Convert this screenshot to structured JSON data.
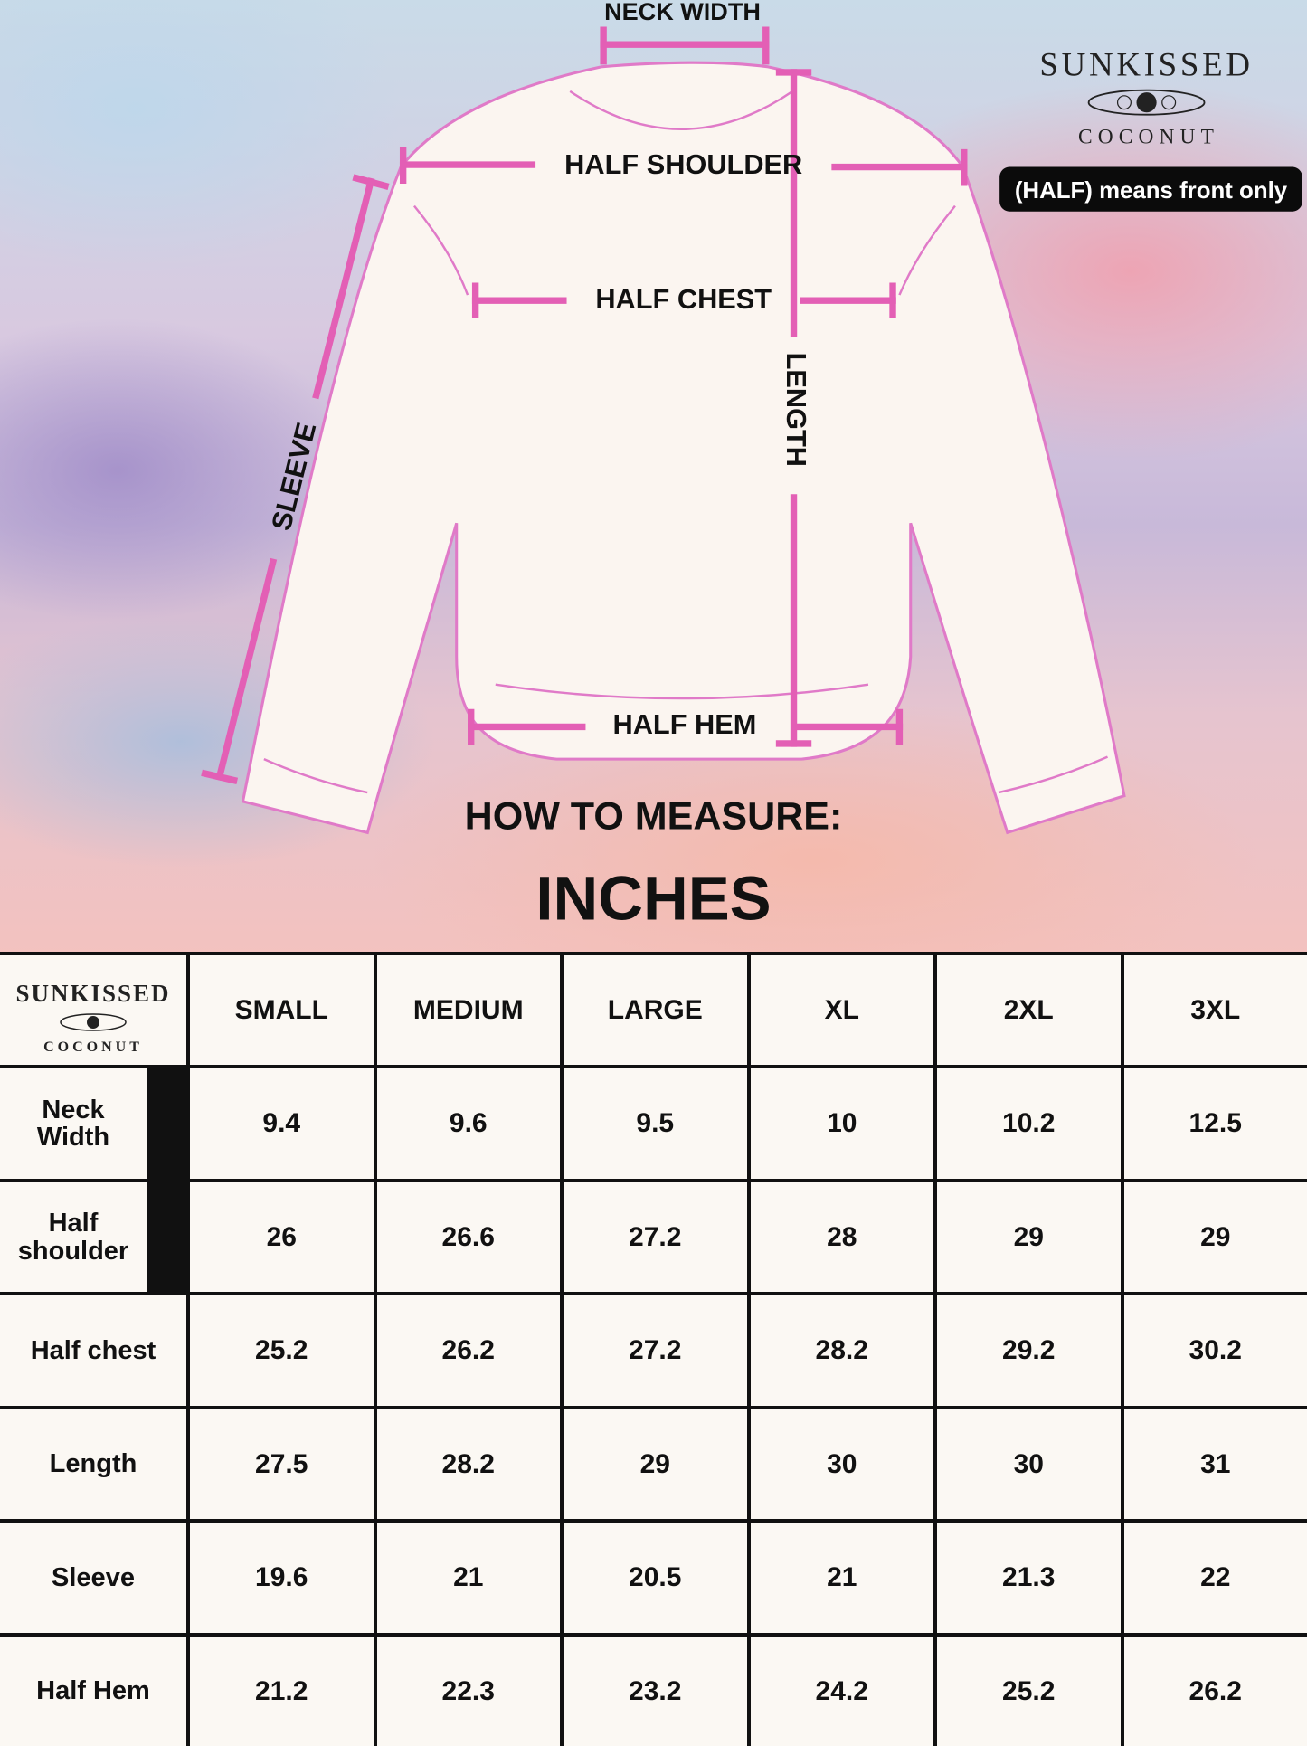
{
  "brand": {
    "line1": "SUNKISSED",
    "line2": "COCONUT",
    "emblem": "hibiscus-surfboard-icon"
  },
  "note_badge": "(HALF) means front only",
  "diagram": {
    "labels": {
      "neck_width": "NECK WIDTH",
      "half_shoulder": "HALF SHOULDER",
      "half_chest": "HALF CHEST",
      "length": "LENGTH",
      "sleeve": "SLEEVE",
      "half_hem": "HALF HEM"
    },
    "heading": "HOW TO MEASURE:",
    "unit": "INCHES",
    "colors": {
      "measure_line": "#e35fb5",
      "outline": "#e07ac8",
      "garment": "#fbf5f0"
    }
  },
  "table": {
    "columns": [
      "SMALL",
      "MEDIUM",
      "LARGE",
      "XL",
      "2XL",
      "3XL"
    ],
    "rows": [
      {
        "label": "Neck Width",
        "values": [
          "9.4",
          "9.6",
          "9.5",
          "10",
          "10.2",
          "12.5"
        ]
      },
      {
        "label": "Half shoulder",
        "values": [
          "26",
          "26.6",
          "27.2",
          "28",
          "29",
          "29"
        ]
      },
      {
        "label": "Half chest",
        "values": [
          "25.2",
          "26.2",
          "27.2",
          "28.2",
          "29.2",
          "30.2"
        ]
      },
      {
        "label": "Length",
        "values": [
          "27.5",
          "28.2",
          "29",
          "30",
          "30",
          "31"
        ]
      },
      {
        "label": "Sleeve",
        "values": [
          "19.6",
          "21",
          "20.5",
          "21",
          "21.3",
          "22"
        ]
      },
      {
        "label": "Half Hem",
        "values": [
          "21.2",
          "22.3",
          "23.2",
          "24.2",
          "25.2",
          "26.2"
        ]
      }
    ]
  }
}
